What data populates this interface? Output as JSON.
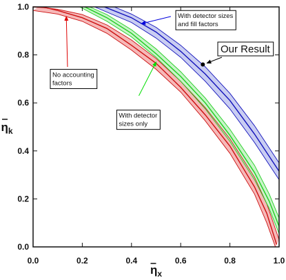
{
  "chart_data": {
    "type": "line",
    "xlabel_symbol": "η",
    "xlabel_sub": "x",
    "ylabel_symbol": "η",
    "ylabel_sub": "k",
    "xlim": [
      0.0,
      1.0
    ],
    "ylim": [
      0.0,
      1.0
    ],
    "x_ticks": [
      "0.0",
      "0.2",
      "0.4",
      "0.6",
      "0.8",
      "1.0"
    ],
    "y_ticks": [
      "0.0",
      "0.2",
      "0.4",
      "0.6",
      "0.8",
      "1.0"
    ],
    "grid": false,
    "legend": "none",
    "series": [
      {
        "color": "#cc1111",
        "fill": "#f6b8b8",
        "center": [
          [
            0.0,
            1.0
          ],
          [
            0.05,
            0.997
          ],
          [
            0.1,
            0.985
          ],
          [
            0.2,
            0.955
          ],
          [
            0.3,
            0.91
          ],
          [
            0.4,
            0.84
          ],
          [
            0.5,
            0.765
          ],
          [
            0.6,
            0.665
          ],
          [
            0.7,
            0.55
          ],
          [
            0.8,
            0.42
          ],
          [
            0.9,
            0.25
          ],
          [
            0.95,
            0.14
          ],
          [
            0.99,
            0.01
          ]
        ],
        "upper": [
          [
            0.02,
            1.0
          ],
          [
            0.1,
            0.99
          ],
          [
            0.2,
            0.968
          ],
          [
            0.3,
            0.925
          ],
          [
            0.4,
            0.862
          ],
          [
            0.5,
            0.785
          ],
          [
            0.6,
            0.69
          ],
          [
            0.7,
            0.58
          ],
          [
            0.8,
            0.45
          ],
          [
            0.9,
            0.29
          ],
          [
            0.95,
            0.18
          ],
          [
            1.0,
            0.03
          ]
        ],
        "lower": [
          [
            0.0,
            0.985
          ],
          [
            0.1,
            0.97
          ],
          [
            0.2,
            0.94
          ],
          [
            0.3,
            0.89
          ],
          [
            0.4,
            0.82
          ],
          [
            0.5,
            0.74
          ],
          [
            0.6,
            0.645
          ],
          [
            0.7,
            0.525
          ],
          [
            0.8,
            0.39
          ],
          [
            0.9,
            0.22
          ],
          [
            0.95,
            0.1
          ],
          [
            0.985,
            0.0
          ]
        ]
      },
      {
        "color": "#22cc22",
        "fill": "#c8f5c8",
        "center": [
          [
            0.21,
            1.0
          ],
          [
            0.3,
            0.955
          ],
          [
            0.4,
            0.89
          ],
          [
            0.5,
            0.805
          ],
          [
            0.6,
            0.71
          ],
          [
            0.7,
            0.6
          ],
          [
            0.8,
            0.465
          ],
          [
            0.9,
            0.31
          ],
          [
            0.96,
            0.19
          ],
          [
            1.0,
            0.085
          ]
        ],
        "upper": [
          [
            0.23,
            1.0
          ],
          [
            0.3,
            0.968
          ],
          [
            0.4,
            0.905
          ],
          [
            0.5,
            0.825
          ],
          [
            0.6,
            0.73
          ],
          [
            0.7,
            0.62
          ],
          [
            0.8,
            0.49
          ],
          [
            0.9,
            0.34
          ],
          [
            0.96,
            0.22
          ],
          [
            1.0,
            0.12
          ]
        ],
        "lower": [
          [
            0.19,
            1.0
          ],
          [
            0.3,
            0.94
          ],
          [
            0.4,
            0.875
          ],
          [
            0.5,
            0.79
          ],
          [
            0.6,
            0.69
          ],
          [
            0.7,
            0.575
          ],
          [
            0.8,
            0.44
          ],
          [
            0.9,
            0.28
          ],
          [
            0.96,
            0.16
          ],
          [
            1.0,
            0.055
          ]
        ]
      },
      {
        "color": "#1111bb",
        "fill": "#c9cdf2",
        "center": [
          [
            0.29,
            1.0
          ],
          [
            0.4,
            0.955
          ],
          [
            0.5,
            0.895
          ],
          [
            0.6,
            0.815
          ],
          [
            0.7,
            0.72
          ],
          [
            0.8,
            0.61
          ],
          [
            0.9,
            0.47
          ],
          [
            1.0,
            0.315
          ]
        ],
        "upper": [
          [
            0.33,
            1.0
          ],
          [
            0.4,
            0.97
          ],
          [
            0.5,
            0.915
          ],
          [
            0.6,
            0.84
          ],
          [
            0.7,
            0.75
          ],
          [
            0.8,
            0.64
          ],
          [
            0.9,
            0.505
          ],
          [
            1.0,
            0.35
          ]
        ],
        "lower": [
          [
            0.25,
            1.0
          ],
          [
            0.4,
            0.935
          ],
          [
            0.5,
            0.87
          ],
          [
            0.6,
            0.79
          ],
          [
            0.7,
            0.69
          ],
          [
            0.8,
            0.575
          ],
          [
            0.9,
            0.435
          ],
          [
            1.0,
            0.28
          ]
        ]
      }
    ],
    "point": {
      "x": 0.69,
      "y": 0.76,
      "label": "Our Result"
    },
    "annotations": [
      {
        "lines": [
          "No accounting",
          "factors"
        ],
        "box": [
          0.07,
          0.74
        ],
        "arrow_from": [
          0.14,
          0.75
        ],
        "arrow_to": [
          0.135,
          0.96
        ],
        "color": "#dd0000"
      },
      {
        "lines": [
          "With detector",
          "sizes only"
        ],
        "box": [
          0.34,
          0.57
        ],
        "arrow_from": [
          0.43,
          0.63
        ],
        "arrow_to": [
          0.5,
          0.77
        ],
        "color": "#00dd00"
      },
      {
        "lines": [
          "With detector sizes",
          "and fill factors"
        ],
        "box": [
          0.58,
          0.985
        ],
        "arrow_from": [
          0.56,
          0.96
        ],
        "arrow_to": [
          0.44,
          0.93
        ],
        "color": "#0000dd"
      }
    ]
  }
}
